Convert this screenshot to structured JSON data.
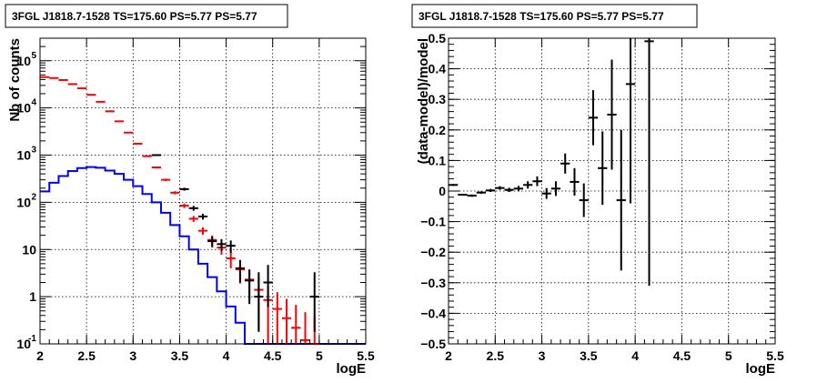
{
  "chart_data": [
    {
      "type": "scatter",
      "title": "3FGL J1818.7-1528 TS=175.60 PS=5.77 PS=5.77",
      "xlabel": "logE",
      "ylabel": "Nb of counts",
      "xlim": [
        2,
        5.5
      ],
      "ylim": [
        0.1,
        300000
      ],
      "yscale": "log",
      "grid": true,
      "x_ticks": [
        "2",
        "2.5",
        "3",
        "3.5",
        "4",
        "4.5",
        "5",
        "5.5"
      ],
      "y_ticks": [
        {
          "base": "10",
          "exp": "-1",
          "value": 0.1
        },
        {
          "base": "1",
          "exp": "",
          "value": 1
        },
        {
          "base": "10",
          "exp": "",
          "value": 10
        },
        {
          "base": "10",
          "exp": "2",
          "value": 100
        },
        {
          "base": "10",
          "exp": "3",
          "value": 1000
        },
        {
          "base": "10",
          "exp": "4",
          "value": 10000
        },
        {
          "base": "10",
          "exp": "5",
          "value": 100000
        }
      ],
      "bin_width": 0.1,
      "series": [
        {
          "color": "#0000ff",
          "style": "histogram",
          "bins_start": 2.0,
          "values": [
            170,
            260,
            360,
            460,
            530,
            560,
            540,
            470,
            400,
            300,
            220,
            150,
            100,
            60,
            33,
            19,
            10,
            5,
            2.6,
            1.3,
            0.62,
            0.28,
            0.1,
            0.1,
            0.1,
            0.1,
            0.1,
            0.1,
            0.1,
            0.1,
            0.1,
            0.1,
            0.1,
            0.1,
            0.1
          ]
        },
        {
          "color": "#ff0000",
          "style": "markers",
          "x": [
            2.05,
            2.15,
            2.25,
            2.35,
            2.45,
            2.55,
            2.65,
            2.75,
            2.85,
            2.95,
            3.05,
            3.15,
            3.25,
            3.35,
            3.45,
            3.55,
            3.65,
            3.75,
            3.85,
            3.95,
            4.05,
            4.15,
            4.25,
            4.35,
            4.45,
            4.55,
            4.65,
            4.75,
            4.85,
            4.95
          ],
          "y": [
            45000,
            43000,
            39000,
            32000,
            26000,
            19000,
            13500,
            8500,
            5200,
            3000,
            1750,
            950,
            550,
            300,
            160,
            85,
            45,
            25,
            16,
            11,
            6.5,
            3.8,
            2.3,
            1.4,
            0.85,
            0.55,
            0.35,
            0.22,
            0.12,
            0.1
          ],
          "y_err_low": [
            200,
            200,
            200,
            200,
            200,
            150,
            120,
            100,
            80,
            60,
            40,
            30,
            25,
            17,
            12,
            9,
            6.5,
            4.5,
            3.8,
            3.3,
            2.5,
            1.9,
            1.5,
            1.2,
            0.9,
            0.7,
            0.55,
            0.45,
            0.35,
            0.3
          ],
          "y_err_high": [
            200,
            200,
            200,
            200,
            200,
            150,
            120,
            100,
            80,
            60,
            40,
            30,
            25,
            17,
            12,
            9,
            6.5,
            4.5,
            3.8,
            3.3,
            2.5,
            1.9,
            1.5,
            1.2,
            0.9,
            0.7,
            0.55,
            0.45,
            0.35,
            0.3
          ]
        },
        {
          "color": "#000000",
          "style": "markers",
          "x": [
            3.25,
            3.55,
            3.65,
            3.75,
            3.85,
            3.95,
            4.05,
            4.15,
            4.25,
            4.35,
            4.45,
            4.95
          ],
          "y": [
            1000,
            190,
            75,
            50,
            15,
            13,
            12,
            4,
            2.2,
            1,
            2,
            1
          ],
          "y_err_low": [
            30,
            14,
            9,
            7,
            3.9,
            3.6,
            3.5,
            2,
            1.5,
            0.82,
            1.4,
            0.82
          ],
          "y_err_high": [
            30,
            14,
            9,
            7,
            3.9,
            3.6,
            3.5,
            2,
            1.5,
            2.3,
            2.7,
            2.3
          ]
        }
      ]
    },
    {
      "type": "scatter",
      "title": "3FGL J1818.7-1528 TS=175.60 PS=5.77 PS=5.77",
      "xlabel": "logE",
      "ylabel": "(data-model)/model",
      "xlim": [
        2,
        5.5
      ],
      "ylim": [
        -0.5,
        0.5
      ],
      "grid": true,
      "x_ticks": [
        "2",
        "2.5",
        "3",
        "3.5",
        "4",
        "4.5",
        "5",
        "5.5"
      ],
      "y_ticks": [
        "-0.5",
        "-0.4",
        "-0.3",
        "-0.2",
        "-0.1",
        "0",
        "0.1",
        "0.2",
        "0.3",
        "0.4",
        "0.5"
      ],
      "bin_width": 0.1,
      "series": [
        {
          "color": "#000000",
          "style": "markers",
          "x": [
            2.05,
            2.15,
            2.25,
            2.35,
            2.45,
            2.55,
            2.65,
            2.75,
            2.85,
            2.95,
            3.05,
            3.15,
            3.25,
            3.35,
            3.45,
            3.55,
            3.65,
            3.75,
            3.85,
            3.95,
            4.15
          ],
          "y": [
            0.02,
            -0.012,
            -0.015,
            -0.005,
            0.002,
            0.01,
            0.004,
            0.008,
            0.02,
            0.032,
            -0.008,
            0.008,
            0.09,
            0.03,
            -0.03,
            0.24,
            0.075,
            0.25,
            -0.03,
            0.35,
            0.49
          ],
          "y_err": [
            0.003,
            0.003,
            0.004,
            0.004,
            0.005,
            0.006,
            0.007,
            0.009,
            0.012,
            0.016,
            0.018,
            0.024,
            0.033,
            0.045,
            0.055,
            0.09,
            0.12,
            0.18,
            0.23,
            0.39,
            0.8
          ]
        }
      ]
    }
  ]
}
